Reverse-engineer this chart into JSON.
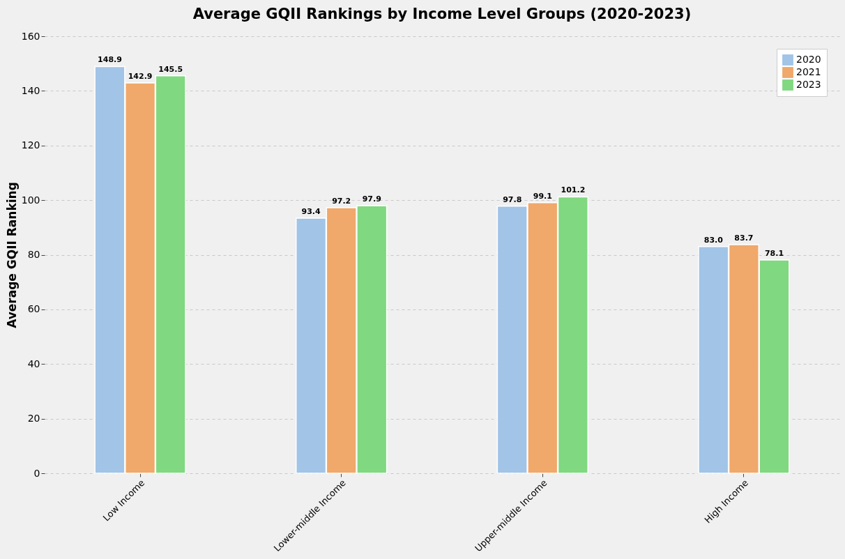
{
  "chart_data": {
    "type": "bar",
    "title": "Average GQII Rankings by Income Level Groups (2020-2023)",
    "ylabel": "Average GQII Ranking",
    "categories": [
      "Low Income",
      "Lower-middle Income",
      "Upper-middle Income",
      "High Income"
    ],
    "series": [
      {
        "name": "2020",
        "color": "#a1c4e7",
        "values": [
          148.9,
          93.4,
          97.8,
          83.0
        ],
        "value_labels": [
          "148.9",
          "93.4",
          "97.8",
          "83.0"
        ]
      },
      {
        "name": "2021",
        "color": "#f0a86b",
        "values": [
          142.9,
          97.2,
          99.1,
          83.7
        ],
        "value_labels": [
          "142.9",
          "97.2",
          "99.1",
          "83.7"
        ]
      },
      {
        "name": "2023",
        "color": "#80d880",
        "values": [
          145.5,
          97.9,
          101.2,
          78.1
        ],
        "value_labels": [
          "145.5",
          "97.9",
          "101.2",
          "78.1"
        ]
      }
    ],
    "ylim": [
      0,
      160
    ],
    "yticks": [
      0,
      20,
      40,
      60,
      80,
      100,
      120,
      140,
      160
    ],
    "grid": "y",
    "legend": "top right"
  }
}
